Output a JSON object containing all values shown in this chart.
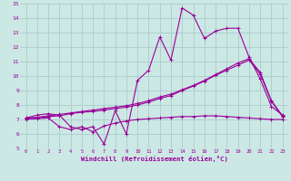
{
  "bg_color": "#cce8e4",
  "grid_color": "#aaccca",
  "line_color": "#990099",
  "xlim": [
    -0.5,
    23.5
  ],
  "ylim": [
    5,
    15
  ],
  "xlabel": "Windchill (Refroidissement éolien,°C)",
  "xticks": [
    0,
    1,
    2,
    3,
    4,
    5,
    6,
    7,
    8,
    9,
    10,
    11,
    12,
    13,
    14,
    15,
    16,
    17,
    18,
    19,
    20,
    21,
    22,
    23
  ],
  "yticks": [
    5,
    6,
    7,
    8,
    9,
    10,
    11,
    12,
    13,
    14,
    15
  ],
  "series1_x": [
    0,
    1,
    2,
    3,
    4,
    5,
    6,
    7,
    8,
    9,
    10,
    11,
    12,
    13,
    14,
    15,
    16,
    17,
    18,
    19,
    20,
    21,
    22,
    23
  ],
  "series1_y": [
    7.1,
    7.3,
    7.4,
    7.3,
    6.5,
    6.3,
    6.5,
    5.3,
    7.6,
    6.0,
    9.7,
    10.4,
    12.7,
    11.1,
    14.7,
    14.2,
    12.6,
    13.1,
    13.3,
    13.3,
    11.3,
    9.8,
    7.9,
    7.3
  ],
  "series2_x": [
    0,
    1,
    2,
    3,
    4,
    5,
    6,
    7,
    8,
    9,
    10,
    11,
    12,
    13,
    14,
    15,
    16,
    17,
    18,
    19,
    20,
    21,
    22,
    23
  ],
  "series2_y": [
    7.0,
    7.1,
    7.2,
    7.25,
    7.4,
    7.5,
    7.55,
    7.65,
    7.75,
    7.85,
    8.0,
    8.2,
    8.45,
    8.65,
    9.0,
    9.3,
    9.65,
    10.05,
    10.4,
    10.75,
    11.1,
    10.15,
    8.25,
    7.2
  ],
  "series3_x": [
    0,
    1,
    2,
    3,
    4,
    5,
    6,
    7,
    8,
    9,
    10,
    11,
    12,
    13,
    14,
    15,
    16,
    17,
    18,
    19,
    20,
    21,
    22,
    23
  ],
  "series3_y": [
    7.1,
    7.15,
    7.25,
    7.35,
    7.45,
    7.55,
    7.65,
    7.75,
    7.85,
    7.95,
    8.1,
    8.3,
    8.55,
    8.75,
    9.05,
    9.35,
    9.7,
    10.1,
    10.5,
    10.9,
    11.2,
    10.25,
    8.3,
    7.25
  ],
  "series4_x": [
    0,
    1,
    2,
    3,
    4,
    5,
    6,
    7,
    8,
    9,
    10,
    11,
    12,
    13,
    14,
    15,
    16,
    17,
    18,
    19,
    20,
    21,
    22,
    23
  ],
  "series4_y": [
    7.05,
    7.05,
    7.1,
    6.5,
    6.3,
    6.5,
    6.15,
    6.55,
    6.75,
    6.9,
    7.0,
    7.05,
    7.1,
    7.15,
    7.2,
    7.2,
    7.25,
    7.25,
    7.2,
    7.15,
    7.1,
    7.05,
    7.0,
    7.0
  ]
}
